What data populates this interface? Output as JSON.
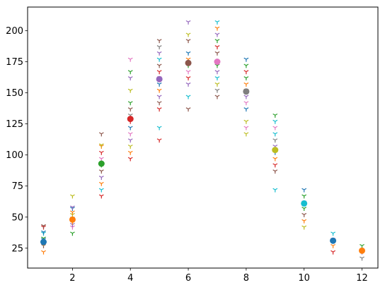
{
  "chart_data": {
    "type": "scatter",
    "title": "",
    "xlabel": "",
    "ylabel": "",
    "xlim": [
      0.45,
      12.55
    ],
    "ylim": [
      9,
      219
    ],
    "grid": false,
    "legend": "none",
    "x_ticks": [
      2,
      4,
      6,
      8,
      10,
      12
    ],
    "y_ticks": [
      25,
      50,
      75,
      100,
      125,
      150,
      175,
      200
    ],
    "x_tick_labels": [
      "2",
      "4",
      "6",
      "8",
      "10",
      "12"
    ],
    "y_tick_labels": [
      "25",
      "50",
      "75",
      "100",
      "125",
      "150",
      "175",
      "200"
    ],
    "palette": [
      "#1f77b4",
      "#ff7f0e",
      "#2ca02c",
      "#d62728",
      "#9467bd",
      "#8c564b",
      "#e377c2",
      "#7f7f7f",
      "#bcbd22",
      "#17becf"
    ],
    "marker_series": [
      {
        "x": 1,
        "values": [
          22,
          27,
          29,
          32,
          33,
          37,
          38,
          42,
          43
        ],
        "colors": [
          "#ff7f0e",
          "#8c564b",
          "#bcbd22",
          "#1f77b4",
          "#2ca02c",
          "#17becf",
          "#1f77b4",
          "#d62728",
          "#8c564b"
        ]
      },
      {
        "x": 2,
        "values": [
          37,
          42,
          44,
          46,
          49,
          52,
          54,
          57,
          58,
          67
        ],
        "colors": [
          "#2ca02c",
          "#e377c2",
          "#9467bd",
          "#ff7f0e",
          "#7f7f7f",
          "#bcbd22",
          "#ff7f0e",
          "#1f77b4",
          "#9467bd",
          "#bcbd22"
        ]
      },
      {
        "x": 3,
        "values": [
          67,
          72,
          77,
          82,
          87,
          92,
          97,
          102,
          107,
          108,
          117
        ],
        "colors": [
          "#d62728",
          "#17becf",
          "#ff7f0e",
          "#9467bd",
          "#8c564b",
          "#2ca02c",
          "#e377c2",
          "#d62728",
          "#ff7f0e",
          "#bcbd22",
          "#8c564b"
        ]
      },
      {
        "x": 4,
        "values": [
          97,
          102,
          107,
          112,
          117,
          122,
          127,
          132,
          137,
          142,
          152,
          162,
          167,
          177
        ],
        "colors": [
          "#d62728",
          "#ff7f0e",
          "#bcbd22",
          "#9467bd",
          "#e377c2",
          "#1f77b4",
          "#d62728",
          "#7f7f7f",
          "#8c564b",
          "#2ca02c",
          "#bcbd22",
          "#9467bd",
          "#2ca02c",
          "#e377c2"
        ]
      },
      {
        "x": 5,
        "values": [
          112,
          122,
          137,
          142,
          147,
          152,
          157,
          162,
          167,
          172,
          177,
          182,
          187,
          192
        ],
        "colors": [
          "#d62728",
          "#17becf",
          "#d62728",
          "#8c564b",
          "#9467bd",
          "#ff7f0e",
          "#1f77b4",
          "#e377c2",
          "#d62728",
          "#8c564b",
          "#17becf",
          "#9467bd",
          "#7f7f7f",
          "#8c564b"
        ]
      },
      {
        "x": 6,
        "values": [
          137,
          147,
          157,
          162,
          167,
          172,
          177,
          182,
          192,
          197,
          207
        ],
        "colors": [
          "#8c564b",
          "#17becf",
          "#9467bd",
          "#d62728",
          "#e377c2",
          "#2ca02c",
          "#ff7f0e",
          "#1f77b4",
          "#8c564b",
          "#bcbd22",
          "#9467bd"
        ]
      },
      {
        "x": 7,
        "values": [
          147,
          152,
          157,
          162,
          167,
          172,
          182,
          187,
          192,
          197,
          202,
          207
        ],
        "colors": [
          "#8c564b",
          "#7f7f7f",
          "#bcbd22",
          "#17becf",
          "#9467bd",
          "#2ca02c",
          "#8c564b",
          "#d62728",
          "#2ca02c",
          "#9467bd",
          "#ff7f0e",
          "#17becf"
        ]
      },
      {
        "x": 8,
        "values": [
          117,
          122,
          127,
          137,
          142,
          147,
          152,
          157,
          162,
          167,
          172,
          177
        ],
        "colors": [
          "#bcbd22",
          "#e377c2",
          "#bcbd22",
          "#1f77b4",
          "#e377c2",
          "#9467bd",
          "#8c564b",
          "#ff7f0e",
          "#2ca02c",
          "#d62728",
          "#2ca02c",
          "#1f77b4"
        ]
      },
      {
        "x": 9,
        "values": [
          72,
          87,
          92,
          97,
          102,
          107,
          112,
          117,
          122,
          127,
          132
        ],
        "colors": [
          "#17becf",
          "#8c564b",
          "#d62728",
          "#ff7f0e",
          "#1f77b4",
          "#9467bd",
          "#7f7f7f",
          "#17becf",
          "#e377c2",
          "#17becf",
          "#2ca02c"
        ]
      },
      {
        "x": 10,
        "values": [
          42,
          47,
          52,
          57,
          62,
          67,
          72
        ],
        "colors": [
          "#bcbd22",
          "#ff7f0e",
          "#8c564b",
          "#2ca02c",
          "#e377c2",
          "#2ca02c",
          "#1f77b4"
        ]
      },
      {
        "x": 11,
        "values": [
          22,
          27,
          32,
          37
        ],
        "colors": [
          "#d62728",
          "#ff7f0e",
          "#e377c2",
          "#17becf"
        ]
      },
      {
        "x": 12,
        "values": [
          17,
          22,
          27
        ],
        "colors": [
          "#7f7f7f",
          "#9467bd",
          "#2ca02c"
        ]
      }
    ],
    "mean_points": [
      {
        "x": 1,
        "y": 30,
        "color": "#1f77b4"
      },
      {
        "x": 2,
        "y": 48,
        "color": "#ff7f0e"
      },
      {
        "x": 3,
        "y": 93,
        "color": "#2ca02c"
      },
      {
        "x": 4,
        "y": 129,
        "color": "#d62728"
      },
      {
        "x": 5,
        "y": 161,
        "color": "#9467bd"
      },
      {
        "x": 6,
        "y": 174,
        "color": "#8c564b"
      },
      {
        "x": 7,
        "y": 175,
        "color": "#e377c2"
      },
      {
        "x": 8,
        "y": 151,
        "color": "#7f7f7f"
      },
      {
        "x": 9,
        "y": 104,
        "color": "#bcbd22"
      },
      {
        "x": 10,
        "y": 61,
        "color": "#17becf"
      },
      {
        "x": 11,
        "y": 31,
        "color": "#1f77b4"
      },
      {
        "x": 12,
        "y": 23,
        "color": "#ff7f0e"
      }
    ]
  }
}
